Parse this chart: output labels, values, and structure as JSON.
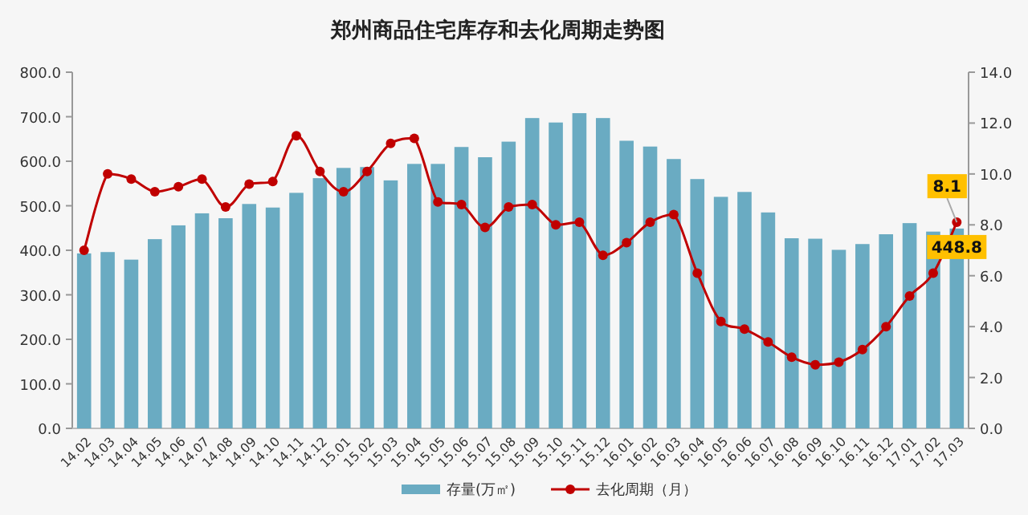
{
  "chart_data": {
    "type": "bar",
    "title": "郑州商品住宅库存和去化周期走势图",
    "categories": [
      "14.02",
      "14.03",
      "14.04",
      "14.05",
      "14.06",
      "14.07",
      "14.08",
      "14.09",
      "14.10",
      "14.11",
      "14.12",
      "15.01",
      "15.02",
      "15.03",
      "15.04",
      "15.05",
      "15.06",
      "15.07",
      "15.08",
      "15.09",
      "15.10",
      "15.11",
      "15.12",
      "16.01",
      "16.02",
      "16.03",
      "16.04",
      "16.05",
      "16.06",
      "16.07",
      "16.08",
      "16.09",
      "16.10",
      "16.11",
      "16.12",
      "17.01",
      "17.02",
      "17.03"
    ],
    "series": [
      {
        "name": "存量(万㎡)",
        "color": "#6aabc2",
        "values": [
          393,
          396,
          379,
          425,
          456,
          483,
          472,
          504,
          496,
          529,
          562,
          585,
          587,
          557,
          594,
          594,
          632,
          609,
          644,
          697,
          687,
          708,
          697,
          646,
          633,
          605,
          560,
          520,
          531,
          485,
          427,
          426,
          401,
          414,
          436,
          461,
          442,
          448.8
        ],
        "value_labels": [
          null,
          null,
          null,
          null,
          null,
          null,
          null,
          null,
          null,
          null,
          null,
          null,
          null,
          null,
          null,
          null,
          null,
          null,
          null,
          null,
          null,
          null,
          null,
          null,
          null,
          null,
          null,
          null,
          null,
          null,
          null,
          null,
          null,
          null,
          null,
          null,
          null,
          "448.8"
        ]
      },
      {
        "name": "去化周期（月）",
        "type": "line",
        "axis": "y2",
        "color": "#c00000",
        "values": [
          7.0,
          10.0,
          9.8,
          9.3,
          9.5,
          9.8,
          8.7,
          9.6,
          9.7,
          11.5,
          10.1,
          9.3,
          10.1,
          11.2,
          11.4,
          8.9,
          8.8,
          7.9,
          8.7,
          8.8,
          8.0,
          8.1,
          6.8,
          7.3,
          8.1,
          8.4,
          6.1,
          4.2,
          3.9,
          3.4,
          2.8,
          2.5,
          2.6,
          3.1,
          4.0,
          5.2,
          6.1,
          8.1
        ],
        "value_labels": [
          null,
          null,
          null,
          null,
          null,
          null,
          null,
          null,
          null,
          null,
          null,
          null,
          null,
          null,
          null,
          null,
          null,
          null,
          null,
          null,
          null,
          null,
          null,
          null,
          null,
          null,
          null,
          null,
          null,
          null,
          null,
          null,
          null,
          null,
          null,
          null,
          null,
          "8.1"
        ]
      }
    ],
    "ylim": [
      0,
      800
    ],
    "yticks": [
      {
        "value": 0,
        "label": "0.0"
      },
      {
        "value": 100,
        "label": "100.0"
      },
      {
        "value": 200,
        "label": "200.0"
      },
      {
        "value": 300,
        "label": "300.0"
      },
      {
        "value": 400,
        "label": "400.0"
      },
      {
        "value": 500,
        "label": "500.0"
      },
      {
        "value": 600,
        "label": "600.0"
      },
      {
        "value": 700,
        "label": "700.0"
      },
      {
        "value": 800,
        "label": "800.0"
      }
    ],
    "y2lim": [
      0,
      14
    ],
    "y2ticks": [
      {
        "value": 0,
        "label": "0.0"
      },
      {
        "value": 2,
        "label": "2.0"
      },
      {
        "value": 4,
        "label": "4.0"
      },
      {
        "value": 6,
        "label": "6.0"
      },
      {
        "value": 8,
        "label": "8.0"
      },
      {
        "value": 10,
        "label": "10.0"
      },
      {
        "value": 12,
        "label": "12.0"
      },
      {
        "value": 14,
        "label": "14.0"
      }
    ],
    "marker": "circle",
    "legend": "bottom",
    "grid": false
  }
}
